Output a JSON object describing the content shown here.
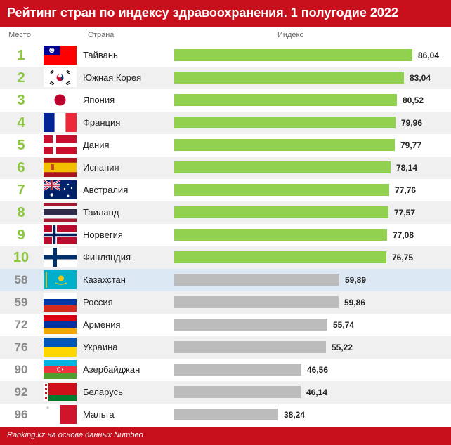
{
  "header": {
    "title": "Рейтинг стран по индексу здравоохранения. 1 полугодие 2022"
  },
  "columns": {
    "rank": "Место",
    "country": "Страна",
    "index": "Индекс"
  },
  "footer": {
    "source": "Ranking.kz на основе данных Numbeo"
  },
  "colors": {
    "header_bg": "#c8101d",
    "top_bar": "#92d050",
    "other_bar": "#bcbcbc",
    "top_rank": "#8cc63f",
    "highlight_row": "#dde8f5"
  },
  "chart_data": {
    "type": "bar",
    "orientation": "horizontal",
    "title": "Рейтинг стран по индексу здравоохранения. 1 полугодие 2022",
    "xlabel": "Индекс",
    "xlim": [
      0,
      100
    ],
    "grid": false,
    "rows": [
      {
        "rank": "1",
        "country": "Тайвань",
        "value": "86,04",
        "v": 86.04,
        "flag": "taiwan-flag"
      },
      {
        "rank": "2",
        "country": "Южная Корея",
        "value": "83,04",
        "v": 83.04,
        "flag": "south-korea-flag"
      },
      {
        "rank": "3",
        "country": "Япония",
        "value": "80,52",
        "v": 80.52,
        "flag": "japan-flag"
      },
      {
        "rank": "4",
        "country": "Франция",
        "value": "79,96",
        "v": 79.96,
        "flag": "france-flag"
      },
      {
        "rank": "5",
        "country": "Дания",
        "value": "79,77",
        "v": 79.77,
        "flag": "denmark-flag"
      },
      {
        "rank": "6",
        "country": "Испания",
        "value": "78,14",
        "v": 78.14,
        "flag": "spain-flag"
      },
      {
        "rank": "7",
        "country": "Австралия",
        "value": "77,76",
        "v": 77.76,
        "flag": "australia-flag"
      },
      {
        "rank": "8",
        "country": "Таиланд",
        "value": "77,57",
        "v": 77.57,
        "flag": "thailand-flag"
      },
      {
        "rank": "9",
        "country": "Норвегия",
        "value": "77,08",
        "v": 77.08,
        "flag": "norway-flag"
      },
      {
        "rank": "10",
        "country": "Финляндия",
        "value": "76,75",
        "v": 76.75,
        "flag": "finland-flag"
      },
      {
        "rank": "58",
        "country": "Казахстан",
        "value": "59,89",
        "v": 59.89,
        "flag": "kazakhstan-flag"
      },
      {
        "rank": "59",
        "country": "Россия",
        "value": "59,86",
        "v": 59.86,
        "flag": "russia-flag"
      },
      {
        "rank": "72",
        "country": "Армения",
        "value": "55,74",
        "v": 55.74,
        "flag": "armenia-flag"
      },
      {
        "rank": "76",
        "country": "Украина",
        "value": "55,22",
        "v": 55.22,
        "flag": "ukraine-flag"
      },
      {
        "rank": "90",
        "country": "Азербайджан",
        "value": "46,56",
        "v": 46.56,
        "flag": "azerbaijan-flag"
      },
      {
        "rank": "92",
        "country": "Беларусь",
        "value": "46,14",
        "v": 46.14,
        "flag": "belarus-flag"
      },
      {
        "rank": "96",
        "country": "Мальта",
        "value": "38,24",
        "v": 38.24,
        "flag": "malta-flag"
      }
    ]
  }
}
